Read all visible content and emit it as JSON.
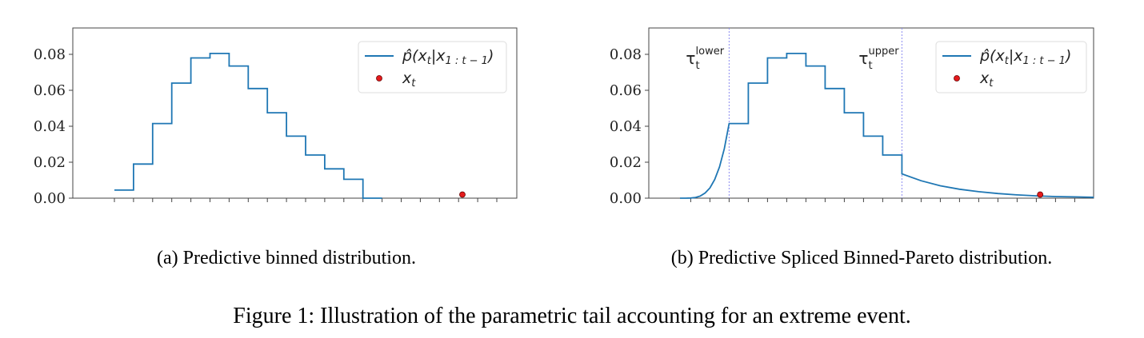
{
  "chart_data": [
    {
      "type": "line",
      "title": "",
      "xlabel": "",
      "ylabel": "",
      "xlim": [
        -2.2,
        21.05
      ],
      "ylim": [
        0,
        0.09
      ],
      "yticks": [
        "0.00",
        "0.02",
        "0.04",
        "0.06",
        "0.08"
      ],
      "ytick_values": [
        0,
        0.02,
        0.04,
        0.06,
        0.08
      ],
      "xticks_count": 21,
      "grid": false,
      "legend_position": "top-right",
      "series": [
        {
          "name": "p̂(x_t|x_{1:t−1})",
          "kind": "step",
          "color": "#1f77b4",
          "bin_edges": [
            0,
            1,
            2,
            3,
            4,
            5,
            6,
            7,
            8,
            9,
            10,
            11,
            12,
            13,
            14
          ],
          "values": [
            0.0045,
            0.019,
            0.0415,
            0.064,
            0.078,
            0.0805,
            0.0735,
            0.061,
            0.0475,
            0.0345,
            0.024,
            0.0163,
            0.0105,
            0.0
          ]
        },
        {
          "name": "x_t",
          "kind": "scatter",
          "color": "#e41a1c",
          "x": [
            18.2
          ],
          "y": [
            0.002
          ]
        }
      ],
      "caption": "(a) Predictive binned distribution."
    },
    {
      "type": "line",
      "title": "",
      "xlabel": "",
      "ylabel": "",
      "xlim": [
        -2.16,
        20.98
      ],
      "ylim": [
        0,
        0.09
      ],
      "yticks": [
        "0.00",
        "0.02",
        "0.04",
        "0.06",
        "0.08"
      ],
      "ytick_values": [
        0,
        0.02,
        0.04,
        0.06,
        0.08
      ],
      "xticks_count": 21,
      "grid": false,
      "legend_position": "top-right",
      "series": [
        {
          "name": "p̂(x_t|x_{1:t−1})",
          "kind": "spliced",
          "color": "#1f77b4",
          "lower_tail": {
            "x": [
              -0.56,
              -0.25,
              0,
              0.25,
              0.5,
              0.75,
              1,
              1.25,
              1.5,
              1.75,
              2
            ],
            "y": [
              0,
              1e-05,
              0.0001,
              0.0004,
              0.0012,
              0.0029,
              0.0057,
              0.0104,
              0.0174,
              0.0275,
              0.0415
            ]
          },
          "bin_edges": [
            2,
            3,
            4,
            5,
            6,
            7,
            8,
            9,
            10,
            11
          ],
          "values": [
            0.0415,
            0.064,
            0.078,
            0.0805,
            0.0735,
            0.061,
            0.0475,
            0.0345,
            0.024
          ],
          "upper_tail": {
            "x": [
              11,
              12,
              13,
              14,
              15,
              16,
              17,
              18,
              19,
              20,
              21
            ],
            "y": [
              0.0135,
              0.0097,
              0.0069,
              0.005,
              0.0036,
              0.0026,
              0.0018,
              0.0013,
              0.0009,
              0.0007,
              0.0005
            ]
          }
        },
        {
          "name": "x_t",
          "kind": "scatter",
          "color": "#e41a1c",
          "x": [
            18.2
          ],
          "y": [
            0.002
          ]
        }
      ],
      "thresholds": [
        {
          "x": 2,
          "symbol": "τ",
          "sub": "t",
          "sup": "lower"
        },
        {
          "x": 11,
          "symbol": "τ",
          "sub": "t",
          "sup": "upper"
        }
      ],
      "caption": "(b) Predictive Spliced Binned-Pareto distribution."
    }
  ],
  "legend": {
    "p_main": "p̂(x",
    "p_sub1": "t",
    "p_mid": "|x",
    "p_sub2": "1 : t − 1",
    "p_end": ")",
    "x_main": "x",
    "x_sub": "t"
  },
  "figure_caption": "Figure 1: Illustration of the parametric tail accounting for an extreme event."
}
